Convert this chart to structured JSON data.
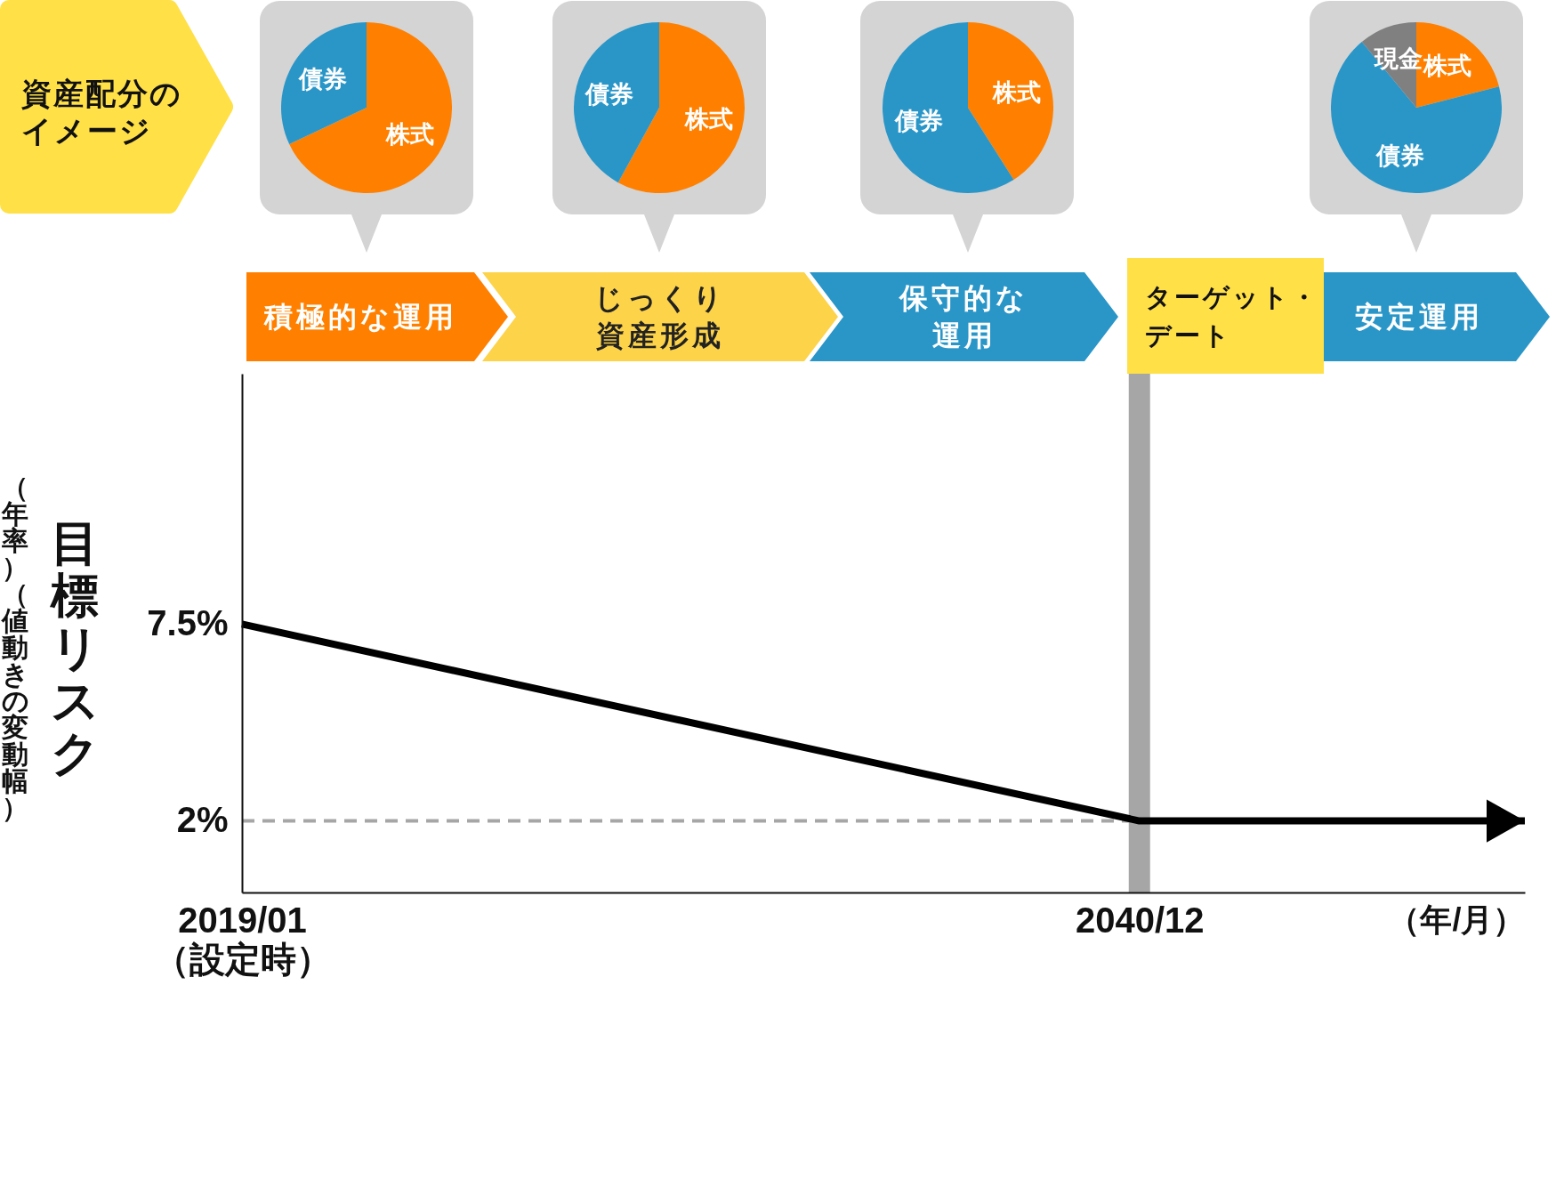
{
  "chart_data": [
    {
      "type": "other",
      "title": "資産配分のイメージ"
    },
    {
      "type": "pie",
      "categories": [
        "株式",
        "債券"
      ],
      "values": [
        68,
        32
      ],
      "colors": [
        "#ff8000",
        "#2a96c8"
      ]
    },
    {
      "type": "pie",
      "categories": [
        "株式",
        "債券"
      ],
      "values": [
        58,
        42
      ],
      "colors": [
        "#ff8000",
        "#2a96c8"
      ]
    },
    {
      "type": "pie",
      "categories": [
        "株式",
        "債券"
      ],
      "values": [
        41,
        59
      ],
      "colors": [
        "#ff8000",
        "#2a96c8"
      ]
    },
    {
      "type": "pie",
      "categories": [
        "株式",
        "債券",
        "現金"
      ],
      "values": [
        21,
        68,
        11
      ],
      "colors": [
        "#ff8000",
        "#2a96c8",
        "#808080"
      ]
    },
    {
      "type": "line",
      "x": [
        "2019-01",
        "2040-12",
        "2050-05"
      ],
      "series": [
        {
          "color": "#000000",
          "values": [
            7.5,
            2,
            2
          ]
        }
      ],
      "xlim": [
        "2019-01",
        "2050-05"
      ],
      "xticks": [
        {
          "value": "2019-01",
          "label": "2019/01\n（設定時）"
        },
        {
          "value": "2040-12",
          "label": "2040/12"
        }
      ],
      "ylim": [
        0,
        14.5
      ],
      "yticks": [
        {
          "value": 7.5,
          "label": "7.5%"
        },
        {
          "value": 2,
          "label": "2%"
        }
      ],
      "xlabel": "（年/月）",
      "ylabel": "目標リスク",
      "ref_lines": [
        {
          "axis": "x",
          "value": "2040-12",
          "label": "ターゲット・デート",
          "color": "#a6a6a6"
        },
        {
          "axis": "y",
          "value": 2,
          "color": "#a6a6a6",
          "line_style": "dashed"
        }
      ],
      "annotations": [
        "積極的な運用",
        "じっくり資産形成",
        "保守的な運用",
        "安定運用",
        "（年率）（値動きの変動幅）"
      ]
    }
  ]
}
